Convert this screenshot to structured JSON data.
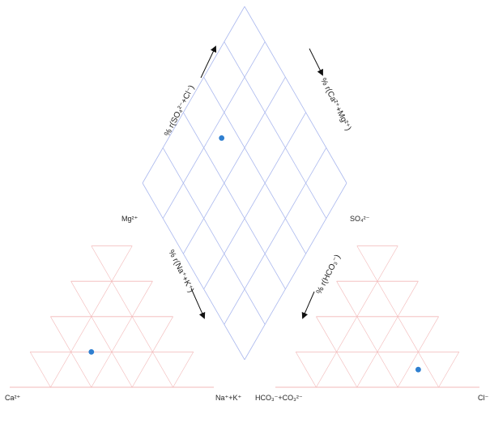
{
  "diagram": {
    "type": "piper",
    "labels": {
      "cation_left": "Ca²⁺",
      "cation_right": "Na⁺+K⁺",
      "anion_left": "HCO₃⁻+CO₃²⁻",
      "anion_right": "Cl⁻",
      "cation_apex": "Mg²⁺",
      "anion_apex": "SO₄²⁻"
    },
    "diamond_axes": {
      "upper_left": "% r(SO₄²⁻+Cl⁻)",
      "upper_right": "% r(Ca²⁺+Mg²⁺)",
      "lower_left": "% r(Na⁺+K⁺)",
      "lower_right": "% r(HCO₃⁻)"
    },
    "colors": {
      "grid_triangle": "#f2b8b8",
      "grid_diamond": "#aab8ee",
      "point": "#2f7fd0",
      "arrow": "#111111"
    }
  },
  "chart_data": {
    "type": "scatter",
    "plot": "piper",
    "samples": [
      {
        "cation_triangle": {
          "Ca": 50,
          "Mg": 20,
          "Na_K": 30
        },
        "anion_triangle": {
          "HCO3_CO3": 25,
          "SO4": 10,
          "Cl": 65
        },
        "diamond": {
          "SO4_Cl": 75,
          "Ca_Mg": 70
        }
      }
    ]
  }
}
